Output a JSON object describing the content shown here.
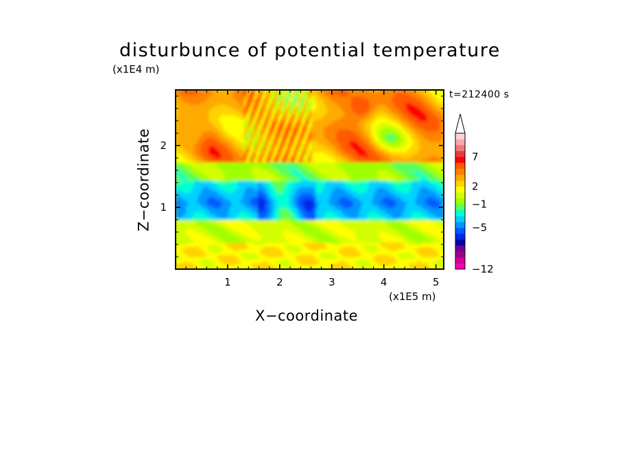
{
  "chart_data": {
    "type": "heatmap",
    "title": "disturbunce of potential temperature",
    "xlabel": "X−coordinate",
    "ylabel": "Z−coordinate",
    "x_unit": "(x1E5 m)",
    "y_unit": "(x1E4 m)",
    "annotation": "t=212400 s",
    "xlim": [
      0,
      5.15
    ],
    "ylim": [
      0,
      2.9
    ],
    "x_ticks": [
      1,
      2,
      3,
      4,
      5
    ],
    "x_tick_labels": [
      "1",
      "2",
      "3",
      "4",
      "5"
    ],
    "y_ticks": [
      1,
      2
    ],
    "y_tick_labels": [
      "1",
      "2"
    ],
    "colorbar": {
      "levels": [
        -12,
        -11,
        -10,
        -9,
        -8,
        -7,
        -6,
        -5,
        -4,
        -3,
        -2,
        -1,
        0,
        1,
        2,
        3,
        4,
        5,
        6,
        7,
        8,
        9,
        10
      ],
      "colors": [
        "#ff00b4",
        "#d2009a",
        "#a0008c",
        "#6e0096",
        "#0000a8",
        "#0028e6",
        "#005aff",
        "#0096ff",
        "#00d2ff",
        "#00ffd2",
        "#5aff5a",
        "#a0ff00",
        "#d2ff00",
        "#ffff00",
        "#ffd200",
        "#ffaa00",
        "#ff8200",
        "#ff5a00",
        "#ff0000",
        "#e63c3c",
        "#f07878",
        "#f5aaaa",
        "#ffd2d2"
      ],
      "tick_labels": [
        "−12",
        "−5",
        "−1",
        "2",
        "7"
      ],
      "tick_values": [
        -12,
        -5,
        -1,
        2,
        7
      ],
      "extend": "max"
    },
    "bands": [
      {
        "z_range": [
          0.0,
          0.45
        ],
        "dominant": "yellow / green patches"
      },
      {
        "z_range": [
          0.45,
          0.8
        ],
        "dominant": "green"
      },
      {
        "z_range": [
          0.8,
          1.4
        ],
        "dominant": "blue / dark blue (negative)"
      },
      {
        "z_range": [
          1.4,
          1.7
        ],
        "dominant": "green / light blue"
      },
      {
        "z_range": [
          1.7,
          2.9
        ],
        "dominant": "orange / red with blue patches"
      }
    ]
  }
}
